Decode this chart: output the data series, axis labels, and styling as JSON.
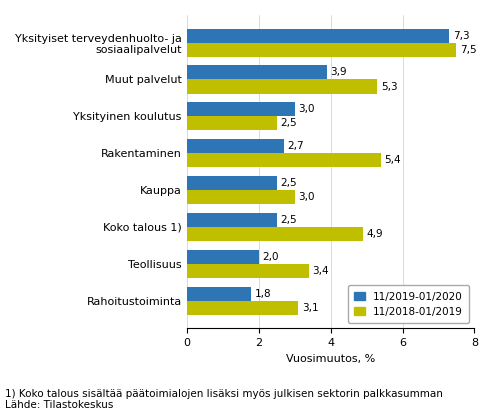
{
  "categories": [
    "Yksityiset terveydenhuolto- ja\nsosiaalipalvelut",
    "Muut palvelut",
    "Yksityinen koulutus",
    "Rakentaminen",
    "Kauppa",
    "Koko talous 1)",
    "Teollisuus",
    "Rahoitustoiminta"
  ],
  "series1_label": "11/2019-01/2020",
  "series2_label": "11/2018-01/2019",
  "series1_values": [
    7.3,
    3.9,
    3.0,
    2.7,
    2.5,
    2.5,
    2.0,
    1.8
  ],
  "series2_values": [
    7.5,
    5.3,
    2.5,
    5.4,
    3.0,
    4.9,
    3.4,
    3.1
  ],
  "series1_color": "#2E75B6",
  "series2_color": "#BFBF00",
  "bar_height": 0.38,
  "xlim": [
    0,
    8
  ],
  "xticks": [
    0,
    2,
    4,
    6,
    8
  ],
  "xlabel": "Vuosimuutos, %",
  "footnote1": "1) Koko talous sisältää päätoimialojen lisäksi myös julkisen sektorin palkkasumman",
  "footnote2": "Lähde: Tilastokeskus",
  "label_fontsize": 8,
  "tick_fontsize": 8,
  "value_fontsize": 7.5,
  "legend_fontsize": 7.5,
  "footnote_fontsize": 7.5,
  "background_color": "#ffffff"
}
